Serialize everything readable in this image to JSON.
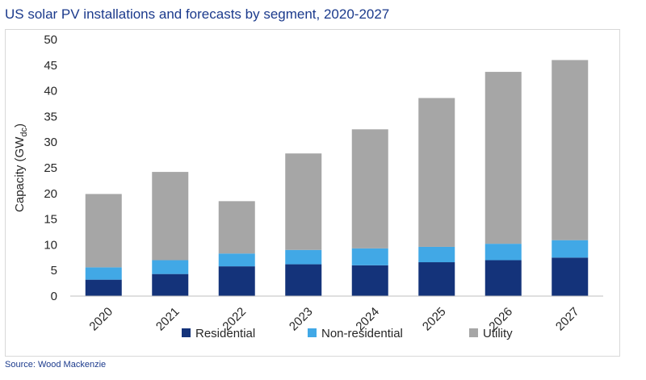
{
  "header": {
    "title": "US solar PV installations and forecasts by segment, 2020-2027"
  },
  "footer": {
    "source": "Source: Wood Mackenzie"
  },
  "chart_data": {
    "type": "bar",
    "stacked": true,
    "title": "US solar PV installations and forecasts by segment, 2020-2027",
    "xlabel": "",
    "ylabel": "Capacity (GW",
    "ylabel_subscript": "dc",
    "ylabel_suffix": ")",
    "ylim": [
      0,
      50
    ],
    "yticks": [
      0,
      5,
      10,
      15,
      20,
      25,
      30,
      35,
      40,
      45,
      50
    ],
    "grid": false,
    "legend_position": "bottom",
    "categories": [
      "2020",
      "2021",
      "2022",
      "2023",
      "2024",
      "2025",
      "2026",
      "2027"
    ],
    "series": [
      {
        "name": "Residential",
        "color": "#14337a",
        "values": [
          3.2,
          4.3,
          5.8,
          6.2,
          6.0,
          6.6,
          7.0,
          7.5
        ]
      },
      {
        "name": "Non-residential",
        "color": "#41a8e6",
        "values": [
          2.4,
          2.7,
          2.5,
          2.8,
          3.3,
          3.0,
          3.2,
          3.4
        ]
      },
      {
        "name": "Utility",
        "color": "#a6a6a6",
        "values": [
          14.3,
          17.2,
          10.2,
          18.8,
          23.2,
          29.0,
          33.5,
          35.1
        ]
      }
    ]
  }
}
